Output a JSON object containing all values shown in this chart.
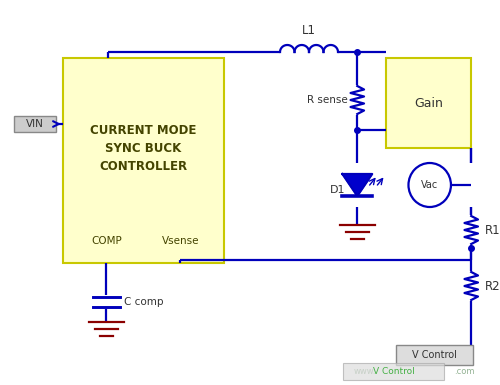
{
  "bg_color": "#ffffff",
  "line_color": "#0000bb",
  "box_color": "#ffffcc",
  "box_edge_color": "#cccc00",
  "vin_label": "VIN",
  "l1_label": "L1",
  "rsense_label": "R sense",
  "d1_label": "D1",
  "ccomp_label": "C comp",
  "r1_label": "R1",
  "r2_label": "R2",
  "vac_label": "Vac",
  "gain_label": "Gain",
  "vcontrol_label": "V Control",
  "watermark": "www.    .com",
  "ctrl_lines": [
    "CURRENT MODE",
    "SYNC BUCK",
    "CONTROLLER"
  ],
  "comp_label": "COMP",
  "vsense_label": "Vsense",
  "ground_color": "#8B0000"
}
